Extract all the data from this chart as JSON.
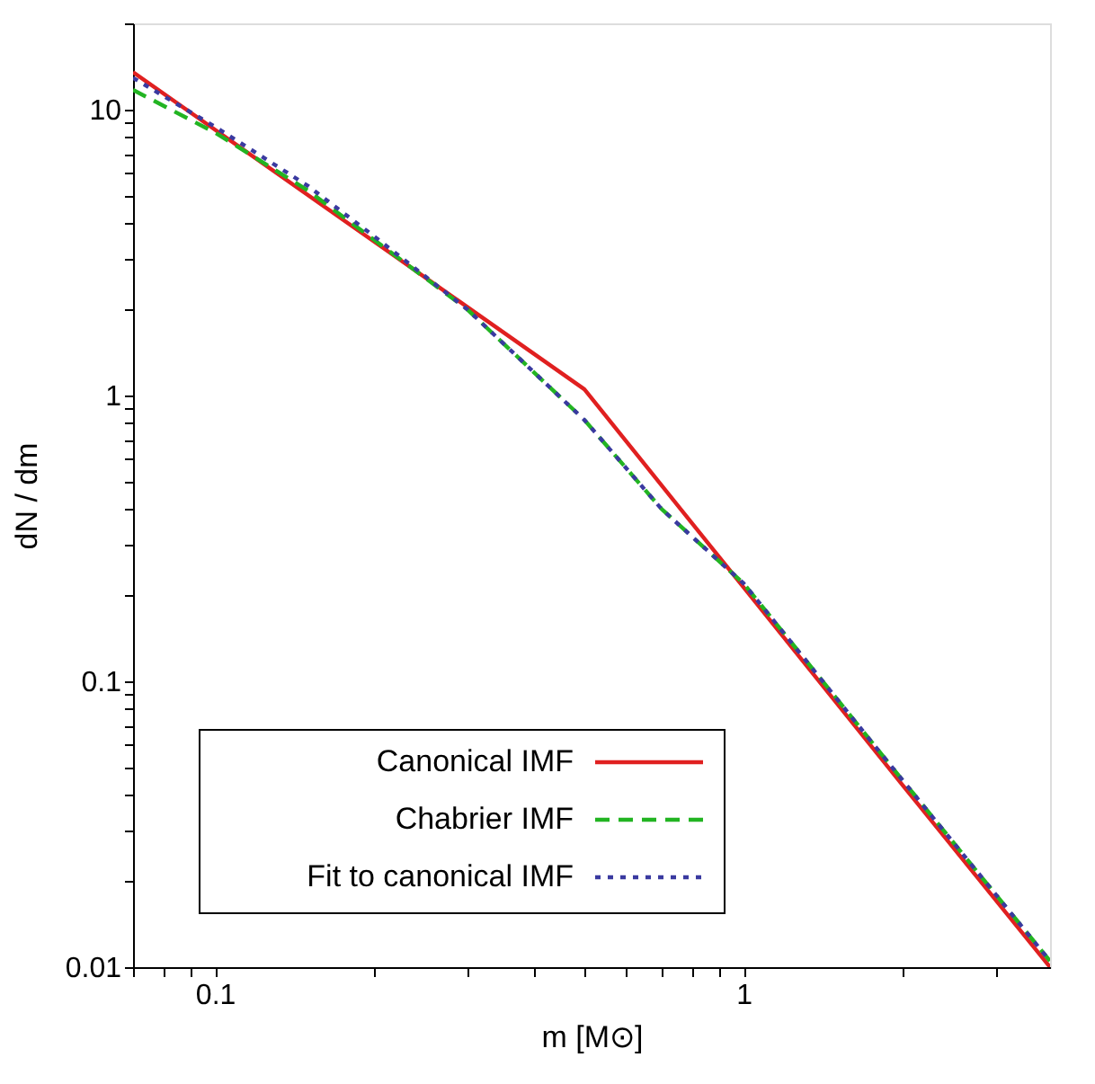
{
  "chart_data": {
    "type": "line",
    "xlabel": "m [M⊙]",
    "ylabel": "dN / dm",
    "log": "xy",
    "grid": false,
    "legend": "bottom left",
    "xlim": [
      0.07,
      3.8
    ],
    "ylim": [
      0.01,
      20
    ],
    "xticks": [
      {
        "value": 0.07,
        "label": null
      },
      {
        "value": 0.08,
        "label": null
      },
      {
        "value": 0.09,
        "label": null
      },
      0.1,
      {
        "value": 0.2,
        "label": null
      },
      {
        "value": 0.3,
        "label": null
      },
      {
        "value": 0.4,
        "label": null
      },
      {
        "value": 0.5,
        "label": null
      },
      {
        "value": 0.6,
        "label": null
      },
      {
        "value": 0.7,
        "label": null
      },
      {
        "value": 0.8,
        "label": null
      },
      {
        "value": 0.9,
        "label": null
      },
      1,
      {
        "value": 2,
        "label": null
      },
      {
        "value": 3,
        "label": null
      }
    ],
    "yticks": [
      0.01,
      {
        "value": 0.02,
        "label": null
      },
      {
        "value": 0.03,
        "label": null
      },
      {
        "value": 0.04,
        "label": null
      },
      {
        "value": 0.05,
        "label": null
      },
      {
        "value": 0.06,
        "label": null
      },
      {
        "value": 0.07,
        "label": null
      },
      {
        "value": 0.08,
        "label": null
      },
      {
        "value": 0.09,
        "label": null
      },
      0.1,
      {
        "value": 0.2,
        "label": null
      },
      {
        "value": 0.3,
        "label": null
      },
      {
        "value": 0.4,
        "label": null
      },
      {
        "value": 0.5,
        "label": null
      },
      {
        "value": 0.6,
        "label": null
      },
      {
        "value": 0.7,
        "label": null
      },
      {
        "value": 0.8,
        "label": null
      },
      {
        "value": 0.9,
        "label": null
      },
      1,
      {
        "value": 2,
        "label": null
      },
      {
        "value": 3,
        "label": null
      },
      {
        "value": 4,
        "label": null
      },
      {
        "value": 5,
        "label": null
      },
      {
        "value": 6,
        "label": null
      },
      {
        "value": 7,
        "label": null
      },
      {
        "value": 8,
        "label": null
      },
      {
        "value": 9,
        "label": null
      },
      10,
      {
        "value": 20,
        "label": null
      }
    ],
    "series": [
      {
        "name": "Canonical IMF",
        "color": "#e02020",
        "line_style": "solid",
        "x": [
          0.07,
          0.1,
          0.2,
          0.5,
          1,
          2,
          3.8
        ],
        "values": [
          13.5,
          8.5,
          3.45,
          1.05,
          0.213,
          0.0433,
          0.01
        ]
      },
      {
        "name": "Chabrier IMF",
        "color": "#22b422",
        "line_style": "dashed",
        "x": [
          0.07,
          0.1,
          0.15,
          0.2,
          0.3,
          0.5,
          0.7,
          1,
          2,
          3.8
        ],
        "values": [
          11.7,
          8.3,
          5.2,
          3.5,
          2.0,
          0.82,
          0.4,
          0.22,
          0.045,
          0.0105
        ]
      },
      {
        "name": "Fit to canonical  IMF",
        "color": "#3a3aa0",
        "line_style": "dotted",
        "x": [
          0.07,
          0.1,
          0.15,
          0.2,
          0.3,
          0.5,
          0.7,
          1,
          2,
          3.8
        ],
        "values": [
          12.9,
          8.7,
          5.4,
          3.6,
          2.0,
          0.82,
          0.4,
          0.22,
          0.045,
          0.0105
        ]
      }
    ]
  }
}
